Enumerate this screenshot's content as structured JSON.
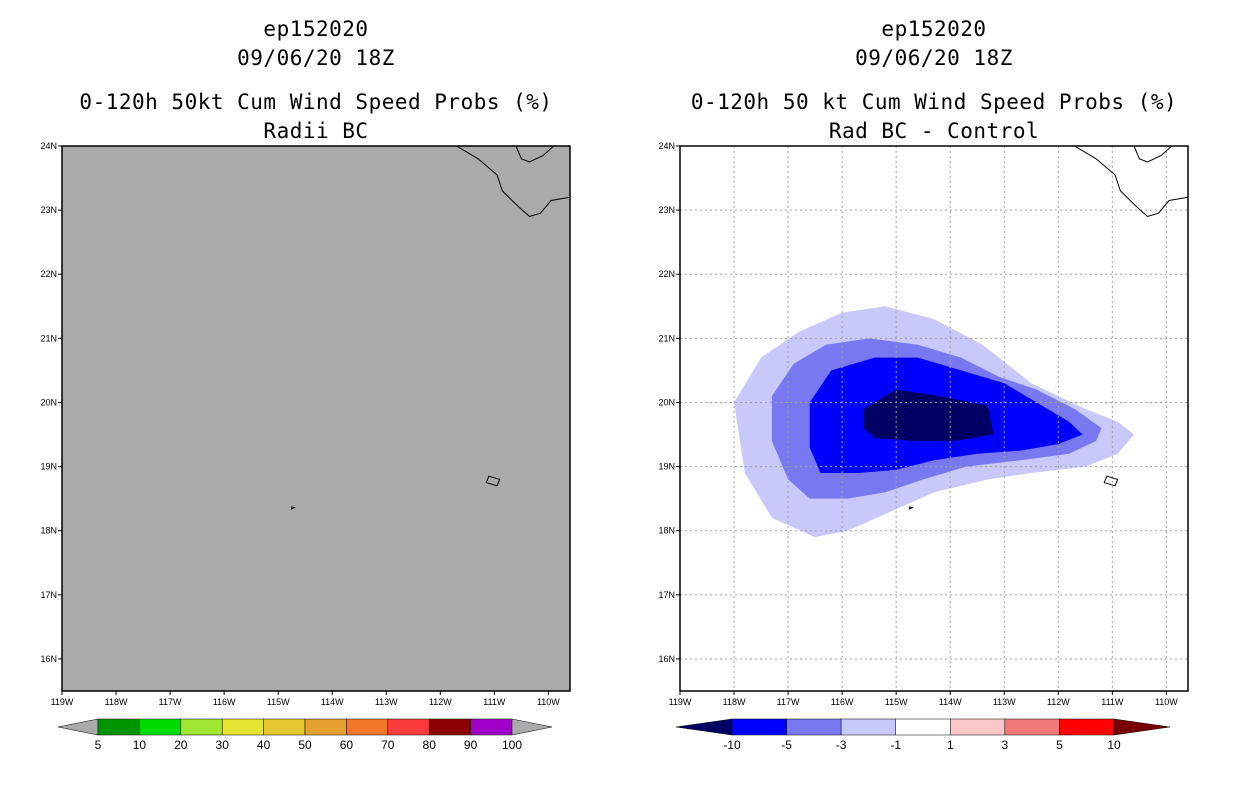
{
  "chart_data": [
    {
      "type": "heatmap",
      "panel": "left",
      "title_lines": [
        "ep152020",
        "09/06/20 18Z",
        "0-120h 50kt Cum Wind Speed Probs (%)",
        "Radii BC"
      ],
      "x_ticks": [
        "119W",
        "118W",
        "117W",
        "116W",
        "115W",
        "114W",
        "113W",
        "112W",
        "111W",
        "110W"
      ],
      "y_ticks": [
        "24N",
        "23N",
        "22N",
        "21N",
        "20N",
        "19N",
        "18N",
        "17N",
        "16N"
      ],
      "xlim": [
        -119,
        -109.6
      ],
      "ylim": [
        15.5,
        24
      ],
      "field_color": "#aaaaaa",
      "field_description_value": "below 5% everywhere",
      "grid": false,
      "colorbar": {
        "labels": [
          "5",
          "10",
          "20",
          "30",
          "40",
          "50",
          "60",
          "70",
          "80",
          "90",
          "100"
        ],
        "colors": [
          "#aaaaaa",
          "#009600",
          "#00dc00",
          "#a0e632",
          "#e6e632",
          "#e6c832",
          "#e6a032",
          "#f07828",
          "#fa3c3c",
          "#8b0000",
          "#a000c8",
          "#aaaaaa"
        ]
      }
    },
    {
      "type": "heatmap",
      "panel": "right",
      "title_lines": [
        "ep152020",
        "09/06/20 18Z",
        "0-120h 50 kt Cum Wind Speed Probs (%)",
        "Rad BC - Control"
      ],
      "x_ticks": [
        "119W",
        "118W",
        "117W",
        "116W",
        "115W",
        "114W",
        "113W",
        "112W",
        "111W",
        "110W"
      ],
      "y_ticks": [
        "24N",
        "23N",
        "22N",
        "21N",
        "20N",
        "19N",
        "18N",
        "17N",
        "16N"
      ],
      "xlim": [
        -119,
        -109.6
      ],
      "ylim": [
        15.5,
        24
      ],
      "grid": true,
      "contours": [
        {
          "level": "-1 to -3",
          "color": "#c8c8fa",
          "points": [
            [
              -118.0,
              20.0
            ],
            [
              -117.5,
              20.7
            ],
            [
              -116.8,
              21.1
            ],
            [
              -116.0,
              21.4
            ],
            [
              -115.2,
              21.5
            ],
            [
              -114.3,
              21.3
            ],
            [
              -113.4,
              20.9
            ],
            [
              -112.5,
              20.3
            ],
            [
              -111.5,
              19.9
            ],
            [
              -110.9,
              19.7
            ],
            [
              -110.6,
              19.5
            ],
            [
              -110.9,
              19.2
            ],
            [
              -111.5,
              19.0
            ],
            [
              -112.5,
              18.9
            ],
            [
              -113.3,
              18.8
            ],
            [
              -114.3,
              18.6
            ],
            [
              -115.1,
              18.3
            ],
            [
              -115.9,
              18.0
            ],
            [
              -116.5,
              17.9
            ],
            [
              -117.3,
              18.2
            ],
            [
              -117.8,
              18.9
            ]
          ]
        },
        {
          "level": "-3 to -5",
          "color": "#7878f0",
          "points": [
            [
              -117.3,
              20.1
            ],
            [
              -116.9,
              20.6
            ],
            [
              -116.3,
              20.9
            ],
            [
              -115.5,
              21.0
            ],
            [
              -114.6,
              20.9
            ],
            [
              -113.8,
              20.7
            ],
            [
              -113.1,
              20.4
            ],
            [
              -112.4,
              20.2
            ],
            [
              -111.7,
              19.9
            ],
            [
              -111.2,
              19.6
            ],
            [
              -111.3,
              19.4
            ],
            [
              -111.8,
              19.2
            ],
            [
              -112.7,
              19.1
            ],
            [
              -113.7,
              19.0
            ],
            [
              -114.5,
              18.8
            ],
            [
              -115.2,
              18.6
            ],
            [
              -115.9,
              18.5
            ],
            [
              -116.6,
              18.5
            ],
            [
              -117.0,
              18.8
            ],
            [
              -117.3,
              19.4
            ]
          ]
        },
        {
          "level": "-5 to -10",
          "color": "#0000ff",
          "points": [
            [
              -116.6,
              20.0
            ],
            [
              -116.2,
              20.5
            ],
            [
              -115.4,
              20.7
            ],
            [
              -114.6,
              20.7
            ],
            [
              -113.8,
              20.5
            ],
            [
              -113.0,
              20.3
            ],
            [
              -112.3,
              19.95
            ],
            [
              -111.8,
              19.7
            ],
            [
              -111.55,
              19.5
            ],
            [
              -112.0,
              19.35
            ],
            [
              -112.7,
              19.25
            ],
            [
              -113.5,
              19.2
            ],
            [
              -114.3,
              19.1
            ],
            [
              -115.0,
              18.95
            ],
            [
              -115.7,
              18.9
            ],
            [
              -116.4,
              18.9
            ],
            [
              -116.6,
              19.3
            ]
          ]
        },
        {
          "level": "below -10",
          "color": "#000064",
          "points": [
            [
              -115.6,
              19.9
            ],
            [
              -115.0,
              20.2
            ],
            [
              -114.2,
              20.1
            ],
            [
              -113.3,
              19.95
            ],
            [
              -113.2,
              19.5
            ],
            [
              -113.9,
              19.4
            ],
            [
              -114.7,
              19.4
            ],
            [
              -115.4,
              19.45
            ],
            [
              -115.6,
              19.6
            ]
          ]
        }
      ],
      "colorbar": {
        "labels": [
          "-10",
          "-5",
          "-3",
          "-1",
          "1",
          "3",
          "5",
          "10"
        ],
        "colors": [
          "#000064",
          "#0000ff",
          "#7878f0",
          "#c8c8fa",
          "#ffffff",
          "#fac8c8",
          "#f07878",
          "#ff0000",
          "#780000"
        ]
      }
    }
  ],
  "coastline": {
    "mainland_baja": [
      [
        -111.7,
        24.0
      ],
      [
        -111.3,
        23.8
      ],
      [
        -110.95,
        23.55
      ],
      [
        -110.85,
        23.3
      ],
      [
        -110.55,
        23.05
      ],
      [
        -110.35,
        22.9
      ],
      [
        -110.15,
        22.95
      ],
      [
        -109.95,
        23.15
      ],
      [
        -109.6,
        23.2
      ]
    ],
    "island_cerralvo": [
      [
        -110.6,
        24.0
      ],
      [
        -110.5,
        23.8
      ],
      [
        -110.35,
        23.75
      ],
      [
        -110.1,
        23.85
      ],
      [
        -109.9,
        24.0
      ]
    ],
    "socorro_island": [
      [
        -111.1,
        18.85
      ],
      [
        -110.9,
        18.8
      ],
      [
        -110.95,
        18.7
      ],
      [
        -111.15,
        18.75
      ]
    ],
    "clarion_island": [
      [
        -114.75,
        18.37
      ],
      [
        -114.7,
        18.36
      ],
      [
        -114.75,
        18.34
      ]
    ]
  }
}
